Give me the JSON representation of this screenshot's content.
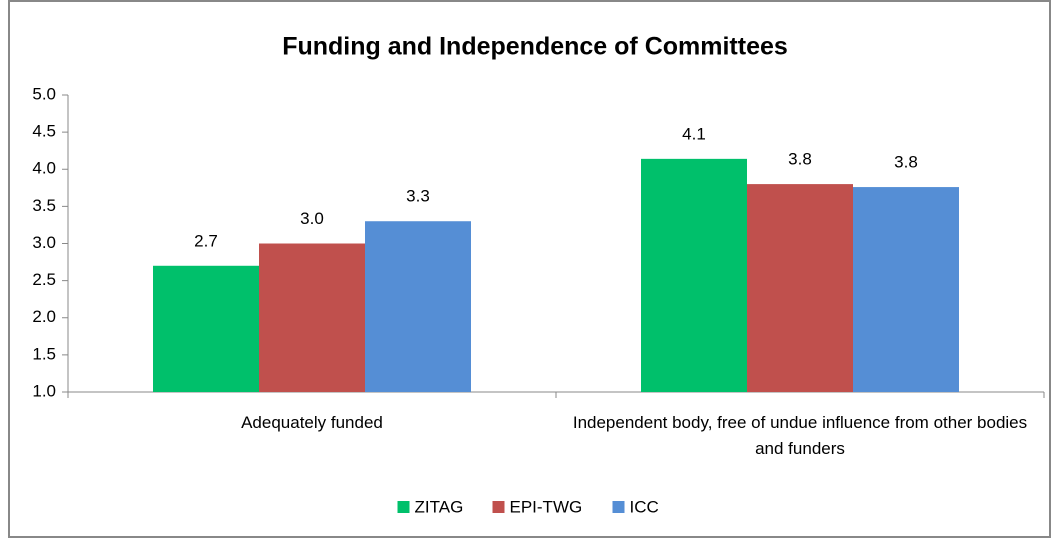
{
  "chart_data": {
    "type": "bar",
    "title": "Funding and Independence of Committees",
    "categories": [
      "Adequately funded",
      "Independent body, free of undue influence from other bodies and funders"
    ],
    "series": [
      {
        "name": "ZITAG",
        "color": "#00c06b",
        "values": [
          2.7,
          4.14
        ],
        "value_labels": [
          "2.7",
          "4.1"
        ]
      },
      {
        "name": "EPI-TWG",
        "color": "#c0504d",
        "values": [
          3.0,
          3.8
        ],
        "value_labels": [
          "3.0",
          "3.8"
        ]
      },
      {
        "name": "ICC",
        "color": "#558ed5",
        "values": [
          3.3,
          3.76
        ],
        "value_labels": [
          "3.3",
          "3.8"
        ]
      }
    ],
    "ylim": [
      1.0,
      5.0
    ],
    "yticks": [
      {
        "value": 1.0,
        "label": "1.0"
      },
      {
        "value": 1.5,
        "label": "1.5"
      },
      {
        "value": 2.0,
        "label": "2.0"
      },
      {
        "value": 2.5,
        "label": "2.5"
      },
      {
        "value": 3.0,
        "label": "3.0"
      },
      {
        "value": 3.5,
        "label": "3.5"
      },
      {
        "value": 4.0,
        "label": "4.0"
      },
      {
        "value": 4.5,
        "label": "4.5"
      },
      {
        "value": 5.0,
        "label": "5.0"
      }
    ],
    "grid": false,
    "legend": "bottom"
  }
}
